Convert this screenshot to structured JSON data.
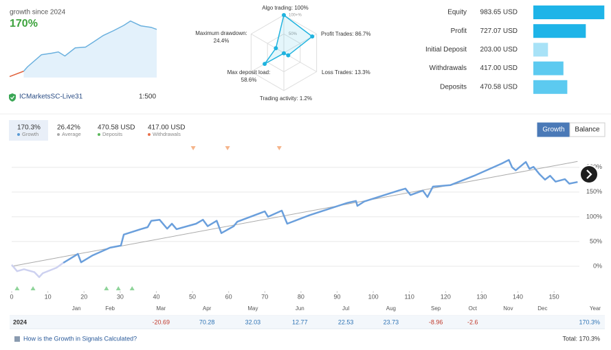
{
  "header": {
    "growth_label": "growth since 2024",
    "growth_value": "170%",
    "broker": "ICMarketsSC-Live31",
    "leverage": "1:500"
  },
  "sparkline": {
    "type": "line",
    "xlim": [
      0,
      157
    ],
    "ylim": [
      -20,
      210
    ],
    "fill": "#e3f1fb",
    "series": [
      {
        "color": "#e0603a",
        "x": [
          0,
          15
        ],
        "values": [
          -16,
          5
        ]
      },
      {
        "color": "#6ab0de",
        "x": [
          15,
          19,
          34,
          45,
          52,
          59,
          70,
          81,
          89,
          100,
          111,
          122,
          129,
          140,
          151,
          157
        ],
        "values": [
          5,
          22,
          70,
          76,
          81,
          65,
          97,
          100,
          119,
          146,
          165,
          186,
          203,
          184,
          178,
          170
        ]
      }
    ]
  },
  "radar": {
    "type": "radar",
    "color": "#1fb3df",
    "rlim": [
      0,
      100
    ],
    "rticks": [
      {
        "value": 50,
        "label": "50%"
      },
      {
        "value": 100,
        "label": "100+%"
      }
    ],
    "labels": [
      "Algo trading: 100%",
      "Profit Trades: 86.7%",
      "Loss Trades: 13.3%",
      "Trading activity: 1.2%",
      [
        "Max deposit load:",
        "58.6%"
      ],
      [
        "Maximum drawdown:",
        "24.4%"
      ]
    ],
    "values": [
      100,
      86.7,
      13.3,
      1.2,
      58.6,
      24.4
    ]
  },
  "balance_bars": {
    "type": "bar",
    "orientation": "horizontal",
    "xlim": [
      0,
      1000
    ],
    "categories": [
      "Equity",
      "Profit",
      "Initial Deposit",
      "Withdrawals",
      "Deposits"
    ],
    "values": [
      983.65,
      727.07,
      203.0,
      417.0,
      470.58
    ],
    "value_labels": [
      "983.65 USD",
      "727.07 USD",
      "203.00 USD",
      "417.00 USD",
      "470.58 USD"
    ],
    "colors": [
      "#1eb4e8",
      "#1eb4e8",
      "#a8e2f7",
      "#5ccaf0",
      "#5ccaf0"
    ]
  },
  "stats": [
    {
      "value": "170.3%",
      "name": "Growth",
      "color": "#5b9bd5"
    },
    {
      "value": "26.42%",
      "name": "Average",
      "color": "#aaaaaa"
    },
    {
      "value": "470.58 USD",
      "name": "Deposits",
      "color": "#5cb85c"
    },
    {
      "value": "417.00 USD",
      "name": "Withdrawals",
      "color": "#e8704a"
    }
  ],
  "tabs": [
    "Growth",
    "Balance"
  ],
  "active_tab": 0,
  "chart_data": {
    "type": "line",
    "xlim": [
      0,
      157
    ],
    "ylim": [
      -50,
      240
    ],
    "grid": true,
    "xticks": [
      0,
      10,
      20,
      30,
      40,
      50,
      60,
      70,
      80,
      90,
      100,
      110,
      120,
      130,
      140,
      150
    ],
    "yticks": [
      {
        "value": 0,
        "label": "0%"
      },
      {
        "value": 50,
        "label": "50%"
      },
      {
        "value": 100,
        "label": "100%"
      },
      {
        "value": 150,
        "label": "150%"
      },
      {
        "value": 200,
        "label": "200%"
      }
    ],
    "series": [
      {
        "color": "#aaaaaa",
        "width": 1,
        "x": [
          0,
          156.5
        ],
        "values": [
          0,
          212
        ]
      },
      {
        "color": "#cdd1f0",
        "width": 2.5,
        "x": [
          0,
          1.5,
          3.4,
          6.3,
          7.6,
          8.6,
          12.4,
          14.3
        ],
        "values": [
          3,
          -10,
          -6,
          -12,
          -22,
          -14,
          -3,
          7
        ]
      },
      {
        "color": "#6a9fdc",
        "width": 2.5,
        "x": [
          14.3,
          17.7,
          18.3,
          19.2,
          22.4,
          27.2,
          30.2,
          31,
          35.7,
          37.6,
          38.6,
          40.9,
          43,
          44.3,
          45.6,
          51,
          52.9,
          54.2,
          56.7,
          58,
          61.4,
          62.4,
          70,
          70.9,
          74.7,
          76.2,
          82.3,
          92.8,
          95.2,
          95.6,
          97.5,
          107,
          108.9,
          110.3,
          113.7,
          115,
          116.5,
          121.3,
          127.9,
          135.6,
          137.5,
          138.4,
          139.4,
          142.2,
          143.2,
          144.3,
          146,
          147.5,
          148.9,
          150.4,
          153,
          154.2,
          156.5
        ],
        "values": [
          7,
          22,
          25,
          8,
          22,
          37.5,
          41.7,
          64,
          75,
          79,
          92,
          94,
          76,
          86,
          75,
          86,
          94,
          81,
          92,
          67,
          81,
          90,
          111,
          100,
          112.5,
          86,
          103,
          128,
          132,
          122,
          131,
          153,
          157,
          144,
          153,
          140,
          161,
          164,
          183,
          208,
          215,
          200,
          194,
          211,
          197,
          201,
          186,
          175,
          183,
          171,
          176,
          167,
          170.3
        ]
      }
    ],
    "withdrawal_marks": {
      "color": "#f5b48a",
      "x": [
        50.2,
        59.7,
        74
      ]
    },
    "deposit_marks": {
      "color": "#8fd49a",
      "x": [
        1.5,
        5.9,
        26.2,
        29.5,
        33.3
      ]
    },
    "months": {
      "labels": [
        "Jan",
        "Feb",
        "Mar",
        "Apr",
        "May",
        "Jun",
        "Jul",
        "Aug",
        "Sep",
        "Oct",
        "Nov",
        "Dec"
      ],
      "x": [
        17.9,
        27.2,
        41.3,
        54,
        66.7,
        79.7,
        92.4,
        104.9,
        117.3,
        127.5,
        137.3,
        146.8
      ]
    },
    "year_label": "Year"
  },
  "monthly_table": {
    "year": "2024",
    "values": [
      null,
      null,
      -20.69,
      70.28,
      32.03,
      12.77,
      22.53,
      23.73,
      -8.96,
      -2.6,
      null,
      null
    ],
    "total": "170.3%"
  },
  "footer": {
    "link": "How is the Growth in Signals Calculated?",
    "total": "Total: 170.3%"
  }
}
